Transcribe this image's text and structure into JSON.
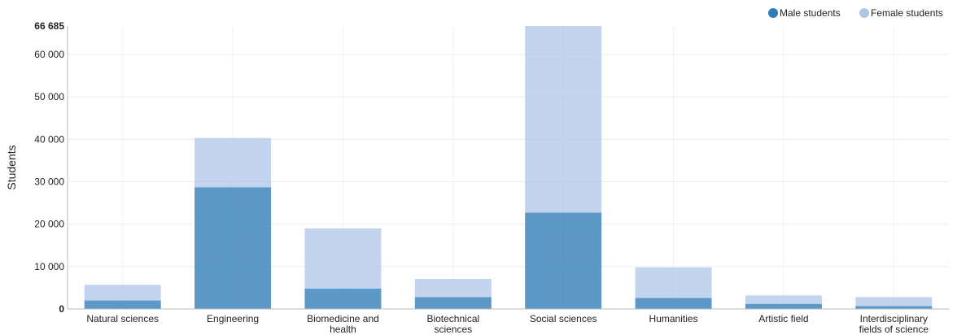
{
  "chart_data": {
    "type": "bar",
    "stacked": true,
    "ylabel": "Students",
    "xlabel": "",
    "ylim": [
      0,
      66685
    ],
    "ymax_label": "66 685",
    "yticks": [
      0,
      10000,
      20000,
      30000,
      40000,
      50000,
      60000
    ],
    "ytick_labels": [
      "0",
      "10 000",
      "20 000",
      "30 000",
      "40 000",
      "50 000",
      "60 000"
    ],
    "grid": true,
    "legend_position": "top-right",
    "categories": [
      [
        "Natural sciences"
      ],
      [
        "Engineering"
      ],
      [
        "Biomedicine and",
        "health"
      ],
      [
        "Biotechnical",
        "sciences"
      ],
      [
        "Social sciences"
      ],
      [
        "Humanities"
      ],
      [
        "Artistic field"
      ],
      [
        "Interdisciplinary",
        "fields of science"
      ]
    ],
    "series": [
      {
        "name": "Male students",
        "color": "#2e7cba",
        "values": [
          2000,
          28700,
          4800,
          2800,
          22700,
          2600,
          1200,
          700
        ]
      },
      {
        "name": "Female students",
        "color": "#aec6e8",
        "values": [
          3700,
          11600,
          14200,
          4300,
          44000,
          7200,
          2000,
          2100
        ]
      }
    ]
  }
}
